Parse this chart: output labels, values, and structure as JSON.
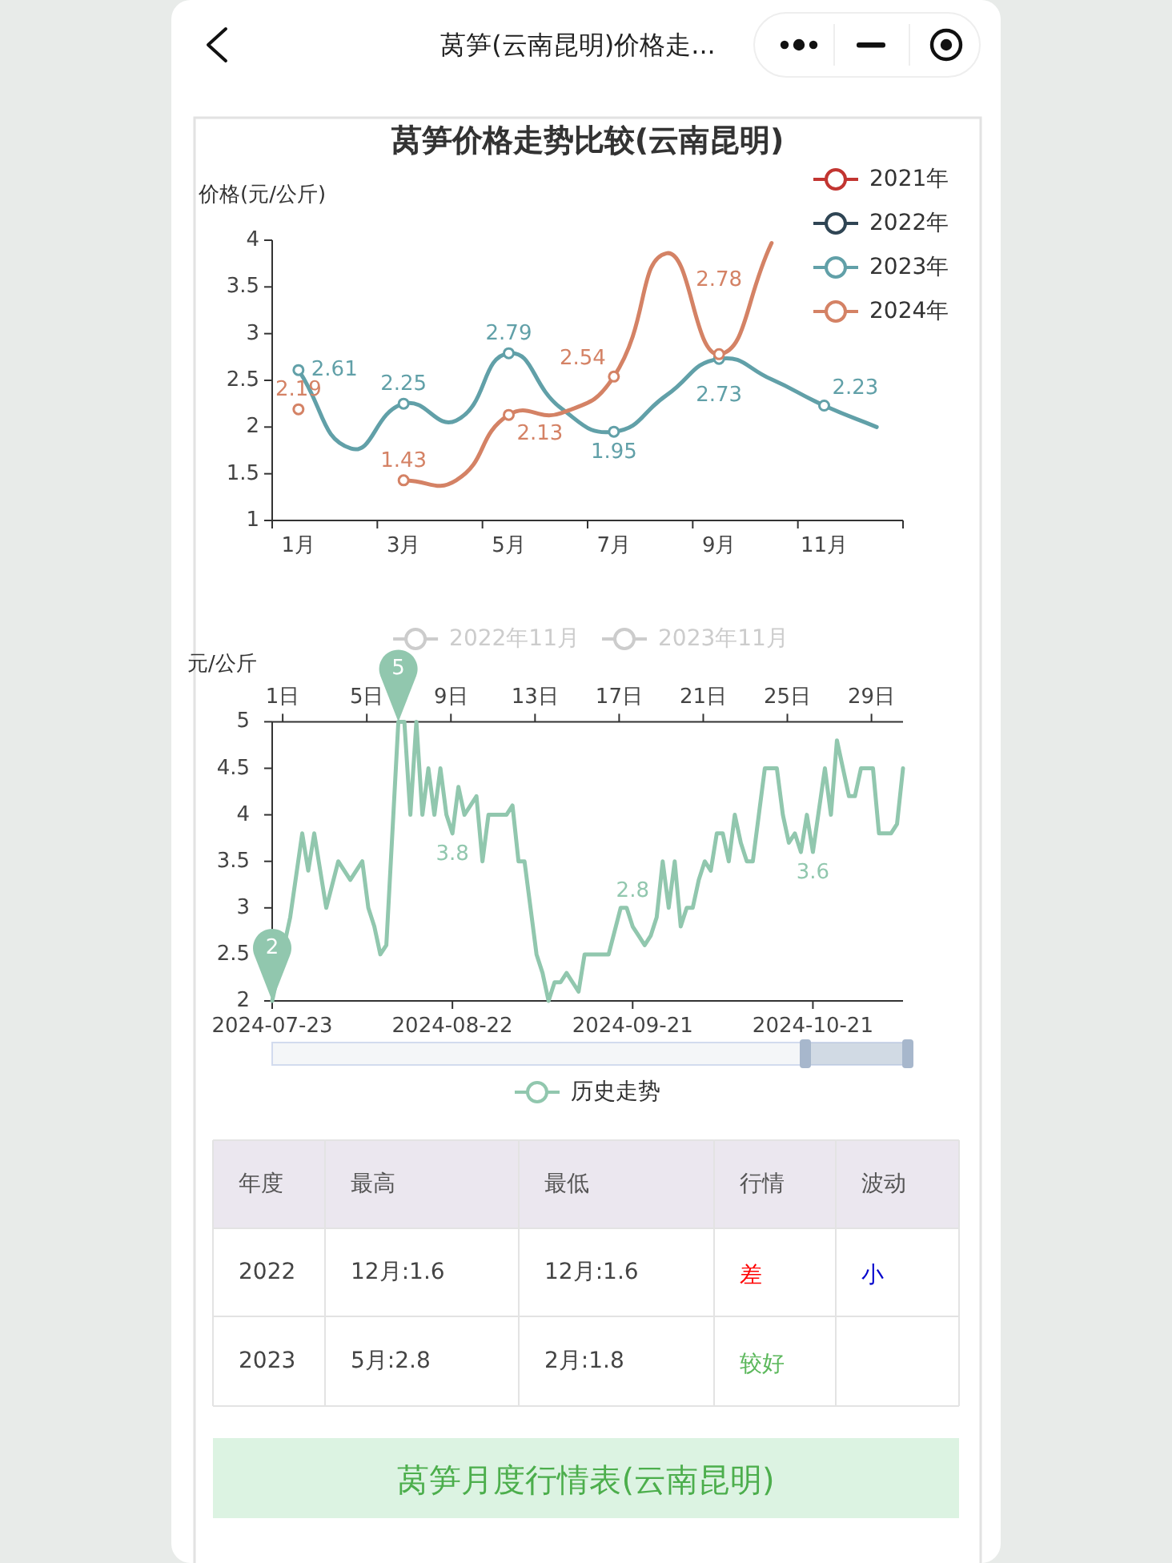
{
  "chart_data": [
    {
      "type": "other",
      "title": "莴笋(云南昆明)价格走..."
    },
    {
      "type": "line",
      "title": "莴笋价格走势比较(云南昆明)",
      "ylabel": "价格(元/公斤)",
      "categories": [
        "1月",
        null,
        "3月",
        null,
        "5月",
        null,
        "7月",
        null,
        "9月",
        null,
        "11月",
        null
      ],
      "ylim": [
        1,
        4
      ],
      "yticks": [
        1,
        1.5,
        2,
        2.5,
        3,
        3.5,
        4
      ],
      "legend": "top right",
      "marker": "circle",
      "line_style": "solid",
      "series": [
        {
          "name": "2021年",
          "color": "#c23531",
          "values": [
            null,
            null,
            null,
            null,
            null,
            null,
            null,
            null,
            null,
            null,
            null,
            null
          ]
        },
        {
          "name": "2022年",
          "color": "#2f4554",
          "values": [
            null,
            null,
            null,
            null,
            null,
            null,
            null,
            null,
            null,
            null,
            null,
            null
          ]
        },
        {
          "name": "2023年",
          "color": "#61a0a8",
          "values": [
            2.61,
            1.77,
            2.25,
            2.07,
            2.79,
            2.2,
            1.95,
            2.34,
            2.73,
            2.51,
            2.23,
            2.0
          ],
          "value_labels": [
            "2.61",
            null,
            "2.25",
            null,
            "2.79",
            null,
            "1.95",
            null,
            "2.73",
            null,
            "2.23",
            null
          ]
        },
        {
          "name": "2024年",
          "color": "#d48265",
          "values": [
            2.19,
            null,
            1.43,
            1.43,
            2.13,
            2.15,
            2.54,
            3.86,
            2.78,
            3.97,
            null,
            null
          ],
          "value_labels": [
            "2.19",
            null,
            "1.43",
            null,
            "2.13",
            null,
            "2.54",
            null,
            "2.78",
            null,
            null,
            null
          ]
        }
      ]
    },
    {
      "type": "line",
      "ylabel": "元/公斤",
      "xlim": [
        "2024-07-23",
        "2024-11-05"
      ],
      "xticks": [
        "2024-07-23",
        "2024-08-22",
        "2024-09-21",
        "2024-10-21"
      ],
      "ylim": [
        2,
        5
      ],
      "yticks": [
        2,
        2.5,
        3,
        3.5,
        4,
        4.5,
        5
      ],
      "x2lim": [
        0.5,
        30.5
      ],
      "x2ticks": [
        {
          "value": 1,
          "label": "1日"
        },
        {
          "value": 5,
          "label": "5日"
        },
        {
          "value": 9,
          "label": "9日"
        },
        {
          "value": 13,
          "label": "13日"
        },
        {
          "value": 17,
          "label": "17日"
        },
        {
          "value": 21,
          "label": "21日"
        },
        {
          "value": 25,
          "label": "25日"
        },
        {
          "value": 29,
          "label": "29日"
        }
      ],
      "legend": "bottom",
      "line_style": "solid",
      "annotations": [
        {
          "text": "5",
          "x": "2024-08-13",
          "y": 5
        },
        {
          "text": "2",
          "x": "2024-07-23",
          "y": 2
        }
      ],
      "series": [
        {
          "name": "2022年11月",
          "color": "#cccccc",
          "axis": "x2"
        },
        {
          "name": "2023年11月",
          "color": "#cccccc",
          "axis": "x2"
        },
        {
          "name": "历史走势",
          "color": "#91c7ae",
          "x": [
            "2024-07-23",
            "2024-07-26",
            "2024-07-28",
            "2024-07-29",
            "2024-07-30",
            "2024-08-01",
            "2024-08-03",
            "2024-08-05",
            "2024-08-07",
            "2024-08-08",
            "2024-08-09",
            "2024-08-10",
            "2024-08-11",
            "2024-08-12",
            "2024-08-13",
            "2024-08-14",
            "2024-08-15",
            "2024-08-16",
            "2024-08-17",
            "2024-08-18",
            "2024-08-19",
            "2024-08-20",
            "2024-08-21",
            "2024-08-22",
            "2024-08-23",
            "2024-08-24",
            "2024-08-26",
            "2024-08-27",
            "2024-08-28",
            "2024-08-31",
            "2024-09-01",
            "2024-09-02",
            "2024-09-03",
            "2024-09-05",
            "2024-09-06",
            "2024-09-07",
            "2024-09-08",
            "2024-09-09",
            "2024-09-10",
            "2024-09-11",
            "2024-09-12",
            "2024-09-13",
            "2024-09-17",
            "2024-09-19",
            "2024-09-20",
            "2024-09-21",
            "2024-09-22",
            "2024-09-23",
            "2024-09-24",
            "2024-09-25",
            "2024-09-26",
            "2024-09-27",
            "2024-09-28",
            "2024-09-29",
            "2024-09-30",
            "2024-10-01",
            "2024-10-02",
            "2024-10-03",
            "2024-10-04",
            "2024-10-05",
            "2024-10-06",
            "2024-10-07",
            "2024-10-08",
            "2024-10-09",
            "2024-10-10",
            "2024-10-11",
            "2024-10-12",
            "2024-10-13",
            "2024-10-15",
            "2024-10-16",
            "2024-10-17",
            "2024-10-18",
            "2024-10-19",
            "2024-10-20",
            "2024-10-21",
            "2024-10-23",
            "2024-10-24",
            "2024-10-25",
            "2024-10-26",
            "2024-10-27",
            "2024-10-28",
            "2024-10-29",
            "2024-10-31",
            "2024-11-01",
            "2024-11-03",
            "2024-11-04",
            "2024-11-05"
          ],
          "values": [
            2,
            2.9,
            3.8,
            3.4,
            3.8,
            3,
            3.5,
            3.3,
            3.5,
            3,
            2.8,
            2.5,
            2.6,
            3.8,
            5,
            5,
            4,
            5,
            4,
            4.5,
            4,
            4.5,
            4,
            3.8,
            4.3,
            4,
            4.2,
            3.5,
            4,
            4,
            4.1,
            3.5,
            3.5,
            2.5,
            2.3,
            2,
            2.2,
            2.2,
            2.3,
            2.2,
            2.1,
            2.5,
            2.5,
            3,
            3,
            2.8,
            2.7,
            2.6,
            2.7,
            2.9,
            3.5,
            3,
            3.5,
            2.8,
            3,
            3,
            3.3,
            3.5,
            3.4,
            3.8,
            3.8,
            3.5,
            4,
            3.7,
            3.5,
            3.5,
            4,
            4.5,
            4.5,
            4,
            3.7,
            3.8,
            3.6,
            4,
            3.6,
            4.5,
            4,
            4.8,
            4.5,
            4.2,
            4.2,
            4.5,
            4.5,
            3.8,
            3.8,
            3.9,
            4.5
          ],
          "value_labels": [
            null,
            null,
            null,
            null,
            null,
            null,
            null,
            null,
            null,
            null,
            null,
            null,
            null,
            null,
            null,
            null,
            null,
            null,
            null,
            null,
            null,
            null,
            null,
            "3.8",
            null,
            null,
            null,
            null,
            null,
            null,
            null,
            null,
            null,
            null,
            null,
            null,
            null,
            null,
            null,
            null,
            null,
            null,
            null,
            null,
            null,
            "2.8",
            null,
            null,
            null,
            null,
            null,
            null,
            null,
            null,
            null,
            null,
            null,
            null,
            null,
            null,
            null,
            null,
            null,
            null,
            null,
            null,
            null,
            null,
            null,
            null,
            null,
            null,
            null,
            null,
            "3.6",
            null,
            null,
            null,
            null,
            null,
            null,
            null,
            null,
            null,
            null,
            null,
            null
          ]
        }
      ]
    },
    {
      "type": "other",
      "categories": [
        "年度",
        "最高",
        "最低",
        "行情",
        "波动"
      ],
      "cell_labels": [
        [
          "2022",
          "12月:1.6",
          "12月:1.6",
          "差",
          "小"
        ],
        [
          "2023",
          "5月:2.8",
          "2月:1.8",
          "较好",
          null
        ]
      ],
      "colors": [
        [
          null,
          null,
          null,
          "#ff0000",
          "#0000cc"
        ],
        [
          null,
          null,
          null,
          "#5cb85c",
          null
        ]
      ]
    },
    {
      "type": "other",
      "title": "莴笋月度行情表(云南昆明)",
      "color": "#4cae4c"
    }
  ]
}
